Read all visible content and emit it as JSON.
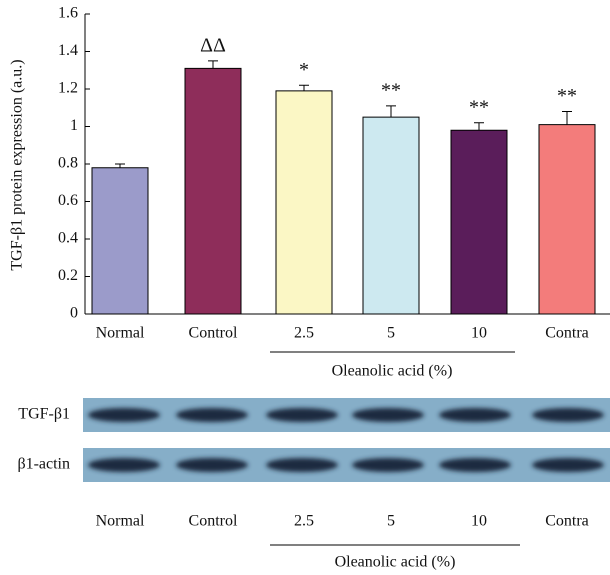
{
  "chart_data": {
    "type": "bar",
    "y_label": "TGF-β1 protein expression (a.u.)",
    "categories": [
      "Normal",
      "Control",
      "2.5",
      "5",
      "10",
      "Contra"
    ],
    "values": [
      0.78,
      1.31,
      1.19,
      1.05,
      0.98,
      1.01
    ],
    "errors": [
      0.02,
      0.04,
      0.03,
      0.06,
      0.04,
      0.07
    ],
    "colors": [
      "#9b9bca",
      "#8e2d5a",
      "#fbf7c5",
      "#cde9f0",
      "#5a1d5a",
      "#f37c7b"
    ],
    "annotations": [
      null,
      "ΔΔ",
      "*",
      "**",
      "**",
      "**"
    ],
    "group_label": "Oleanolic acid (%)",
    "ylim": [
      0,
      1.6
    ],
    "yticks": [
      0,
      0.2,
      0.4,
      0.6,
      0.8,
      1,
      1.2,
      1.4,
      1.6
    ]
  },
  "blot": {
    "rows": [
      "TGF-β1",
      "β1-actin"
    ],
    "lanes": [
      "Normal",
      "Control",
      "2.5",
      "5",
      "10",
      "Contra"
    ],
    "group_label": "Oleanolic acid (%)"
  }
}
